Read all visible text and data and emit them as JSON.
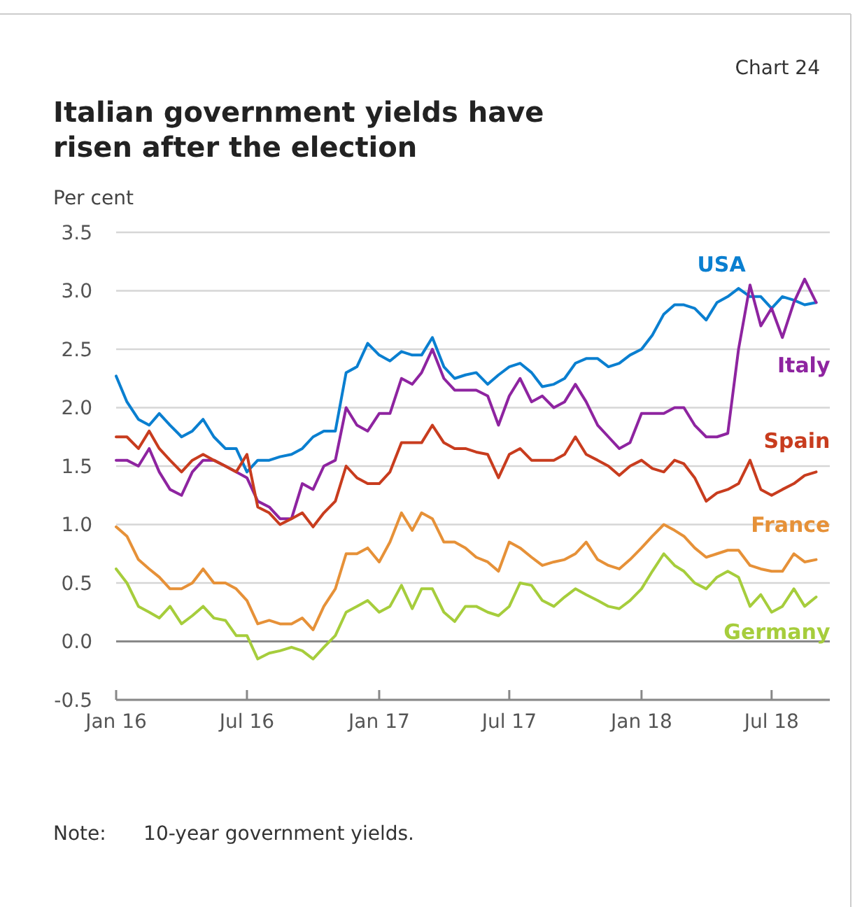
{
  "chart_data": {
    "type": "line",
    "title": "Italian government yields have risen after the election",
    "ylabel": "Per cent",
    "annotations": [
      "Chart 24",
      "Note:      10-year government yields."
    ],
    "x": [
      "2016-01-01",
      "2016-01-16",
      "2016-02-01",
      "2016-02-16",
      "2016-03-01",
      "2016-03-16",
      "2016-04-01",
      "2016-04-16",
      "2016-05-01",
      "2016-05-16",
      "2016-06-01",
      "2016-06-16",
      "2016-07-01",
      "2016-07-16",
      "2016-08-01",
      "2016-08-16",
      "2016-09-01",
      "2016-09-16",
      "2016-10-01",
      "2016-10-16",
      "2016-11-01",
      "2016-11-16",
      "2016-12-01",
      "2016-12-16",
      "2017-01-01",
      "2017-01-16",
      "2017-02-01",
      "2017-02-16",
      "2017-03-01",
      "2017-03-16",
      "2017-04-01",
      "2017-04-16",
      "2017-05-01",
      "2017-05-16",
      "2017-06-01",
      "2017-06-16",
      "2017-07-01",
      "2017-07-16",
      "2017-08-01",
      "2017-08-16",
      "2017-09-01",
      "2017-09-16",
      "2017-10-01",
      "2017-10-16",
      "2017-11-01",
      "2017-11-16",
      "2017-12-01",
      "2017-12-16",
      "2018-01-01",
      "2018-01-16",
      "2018-02-01",
      "2018-02-16",
      "2018-03-01",
      "2018-03-16",
      "2018-04-01",
      "2018-04-16",
      "2018-05-01",
      "2018-05-16",
      "2018-06-01",
      "2018-06-16",
      "2018-07-01",
      "2018-07-16",
      "2018-08-01",
      "2018-08-16",
      "2018-09-01"
    ],
    "series": [
      {
        "name": "USA",
        "color": "#0a7fd0",
        "values": [
          2.27,
          2.05,
          1.9,
          1.85,
          1.95,
          1.85,
          1.75,
          1.8,
          1.9,
          1.75,
          1.65,
          1.65,
          1.45,
          1.55,
          1.55,
          1.58,
          1.6,
          1.65,
          1.75,
          1.8,
          1.8,
          2.3,
          2.35,
          2.55,
          2.45,
          2.4,
          2.48,
          2.45,
          2.45,
          2.6,
          2.35,
          2.25,
          2.28,
          2.3,
          2.2,
          2.28,
          2.35,
          2.38,
          2.3,
          2.18,
          2.2,
          2.25,
          2.38,
          2.42,
          2.42,
          2.35,
          2.38,
          2.45,
          2.5,
          2.62,
          2.8,
          2.88,
          2.88,
          2.85,
          2.75,
          2.9,
          2.95,
          3.02,
          2.95,
          2.95,
          2.85,
          2.95,
          2.92,
          2.88,
          2.9
        ]
      },
      {
        "name": "Italy",
        "color": "#8e24a0",
        "values": [
          1.55,
          1.55,
          1.5,
          1.65,
          1.45,
          1.3,
          1.25,
          1.45,
          1.55,
          1.55,
          1.5,
          1.45,
          1.4,
          1.2,
          1.15,
          1.05,
          1.05,
          1.35,
          1.3,
          1.5,
          1.55,
          2.0,
          1.85,
          1.8,
          1.95,
          1.95,
          2.25,
          2.2,
          2.3,
          2.5,
          2.25,
          2.15,
          2.15,
          2.15,
          2.1,
          1.85,
          2.1,
          2.25,
          2.05,
          2.1,
          2.0,
          2.05,
          2.2,
          2.05,
          1.85,
          1.75,
          1.65,
          1.7,
          1.95,
          1.95,
          1.95,
          2.0,
          2.0,
          1.85,
          1.75,
          1.75,
          1.78,
          2.5,
          3.05,
          2.7,
          2.85,
          2.6,
          2.9,
          3.1,
          2.9
        ]
      },
      {
        "name": "Spain",
        "color": "#c83c1e",
        "values": [
          1.75,
          1.75,
          1.65,
          1.8,
          1.65,
          1.55,
          1.45,
          1.55,
          1.6,
          1.55,
          1.5,
          1.45,
          1.6,
          1.15,
          1.1,
          1.0,
          1.05,
          1.1,
          0.98,
          1.1,
          1.2,
          1.5,
          1.4,
          1.35,
          1.35,
          1.45,
          1.7,
          1.7,
          1.7,
          1.85,
          1.7,
          1.65,
          1.65,
          1.62,
          1.6,
          1.4,
          1.6,
          1.65,
          1.55,
          1.55,
          1.55,
          1.6,
          1.75,
          1.6,
          1.55,
          1.5,
          1.42,
          1.5,
          1.55,
          1.48,
          1.45,
          1.55,
          1.52,
          1.4,
          1.2,
          1.27,
          1.3,
          1.35,
          1.55,
          1.3,
          1.25,
          1.3,
          1.35,
          1.42,
          1.45
        ]
      },
      {
        "name": "France",
        "color": "#e69138",
        "values": [
          0.98,
          0.9,
          0.7,
          0.62,
          0.55,
          0.45,
          0.45,
          0.5,
          0.62,
          0.5,
          0.5,
          0.45,
          0.35,
          0.15,
          0.18,
          0.15,
          0.15,
          0.2,
          0.1,
          0.3,
          0.45,
          0.75,
          0.75,
          0.8,
          0.68,
          0.85,
          1.1,
          0.95,
          1.1,
          1.05,
          0.85,
          0.85,
          0.8,
          0.72,
          0.68,
          0.6,
          0.85,
          0.8,
          0.72,
          0.65,
          0.68,
          0.7,
          0.75,
          0.85,
          0.7,
          0.65,
          0.62,
          0.7,
          0.8,
          0.9,
          1.0,
          0.95,
          0.9,
          0.8,
          0.72,
          0.75,
          0.78,
          0.78,
          0.65,
          0.62,
          0.6,
          0.6,
          0.75,
          0.68,
          0.7
        ]
      },
      {
        "name": "Germany",
        "color": "#a6cd3c",
        "values": [
          0.62,
          0.5,
          0.3,
          0.25,
          0.2,
          0.3,
          0.15,
          0.22,
          0.3,
          0.2,
          0.18,
          0.05,
          0.05,
          -0.15,
          -0.1,
          -0.08,
          -0.05,
          -0.08,
          -0.15,
          -0.05,
          0.05,
          0.25,
          0.3,
          0.35,
          0.25,
          0.3,
          0.48,
          0.28,
          0.45,
          0.45,
          0.25,
          0.17,
          0.3,
          0.3,
          0.25,
          0.22,
          0.3,
          0.5,
          0.48,
          0.35,
          0.3,
          0.38,
          0.45,
          0.4,
          0.35,
          0.3,
          0.28,
          0.35,
          0.45,
          0.6,
          0.75,
          0.65,
          0.6,
          0.5,
          0.45,
          0.55,
          0.6,
          0.55,
          0.3,
          0.4,
          0.25,
          0.3,
          0.45,
          0.3,
          0.38
        ]
      }
    ],
    "xlim": [
      "2016-01-01",
      "2018-09-20"
    ],
    "xticks": [
      {
        "value": "2016-01-01",
        "label": "Jan 16"
      },
      {
        "value": "2016-07-01",
        "label": "Jul 16"
      },
      {
        "value": "2017-01-01",
        "label": "Jan 17"
      },
      {
        "value": "2017-07-01",
        "label": "Jul 17"
      },
      {
        "value": "2018-01-01",
        "label": "Jan 18"
      },
      {
        "value": "2018-07-01",
        "label": "Jul 18"
      }
    ],
    "ylim": [
      -0.5,
      3.5
    ],
    "yticks": [
      {
        "value": -0.5,
        "label": "-0.5"
      },
      {
        "value": 0,
        "label": "0.0"
      },
      {
        "value": 0.5,
        "label": "0.5"
      },
      {
        "value": 1,
        "label": "1.0"
      },
      {
        "value": 1.5,
        "label": "1.5"
      },
      {
        "value": 2,
        "label": "2.0"
      },
      {
        "value": 2.5,
        "label": "2.5"
      },
      {
        "value": 3,
        "label": "3.0"
      },
      {
        "value": 3.5,
        "label": "3.5"
      }
    ],
    "grid": "y",
    "legend": false,
    "marker": "none",
    "line_style": "solid"
  }
}
